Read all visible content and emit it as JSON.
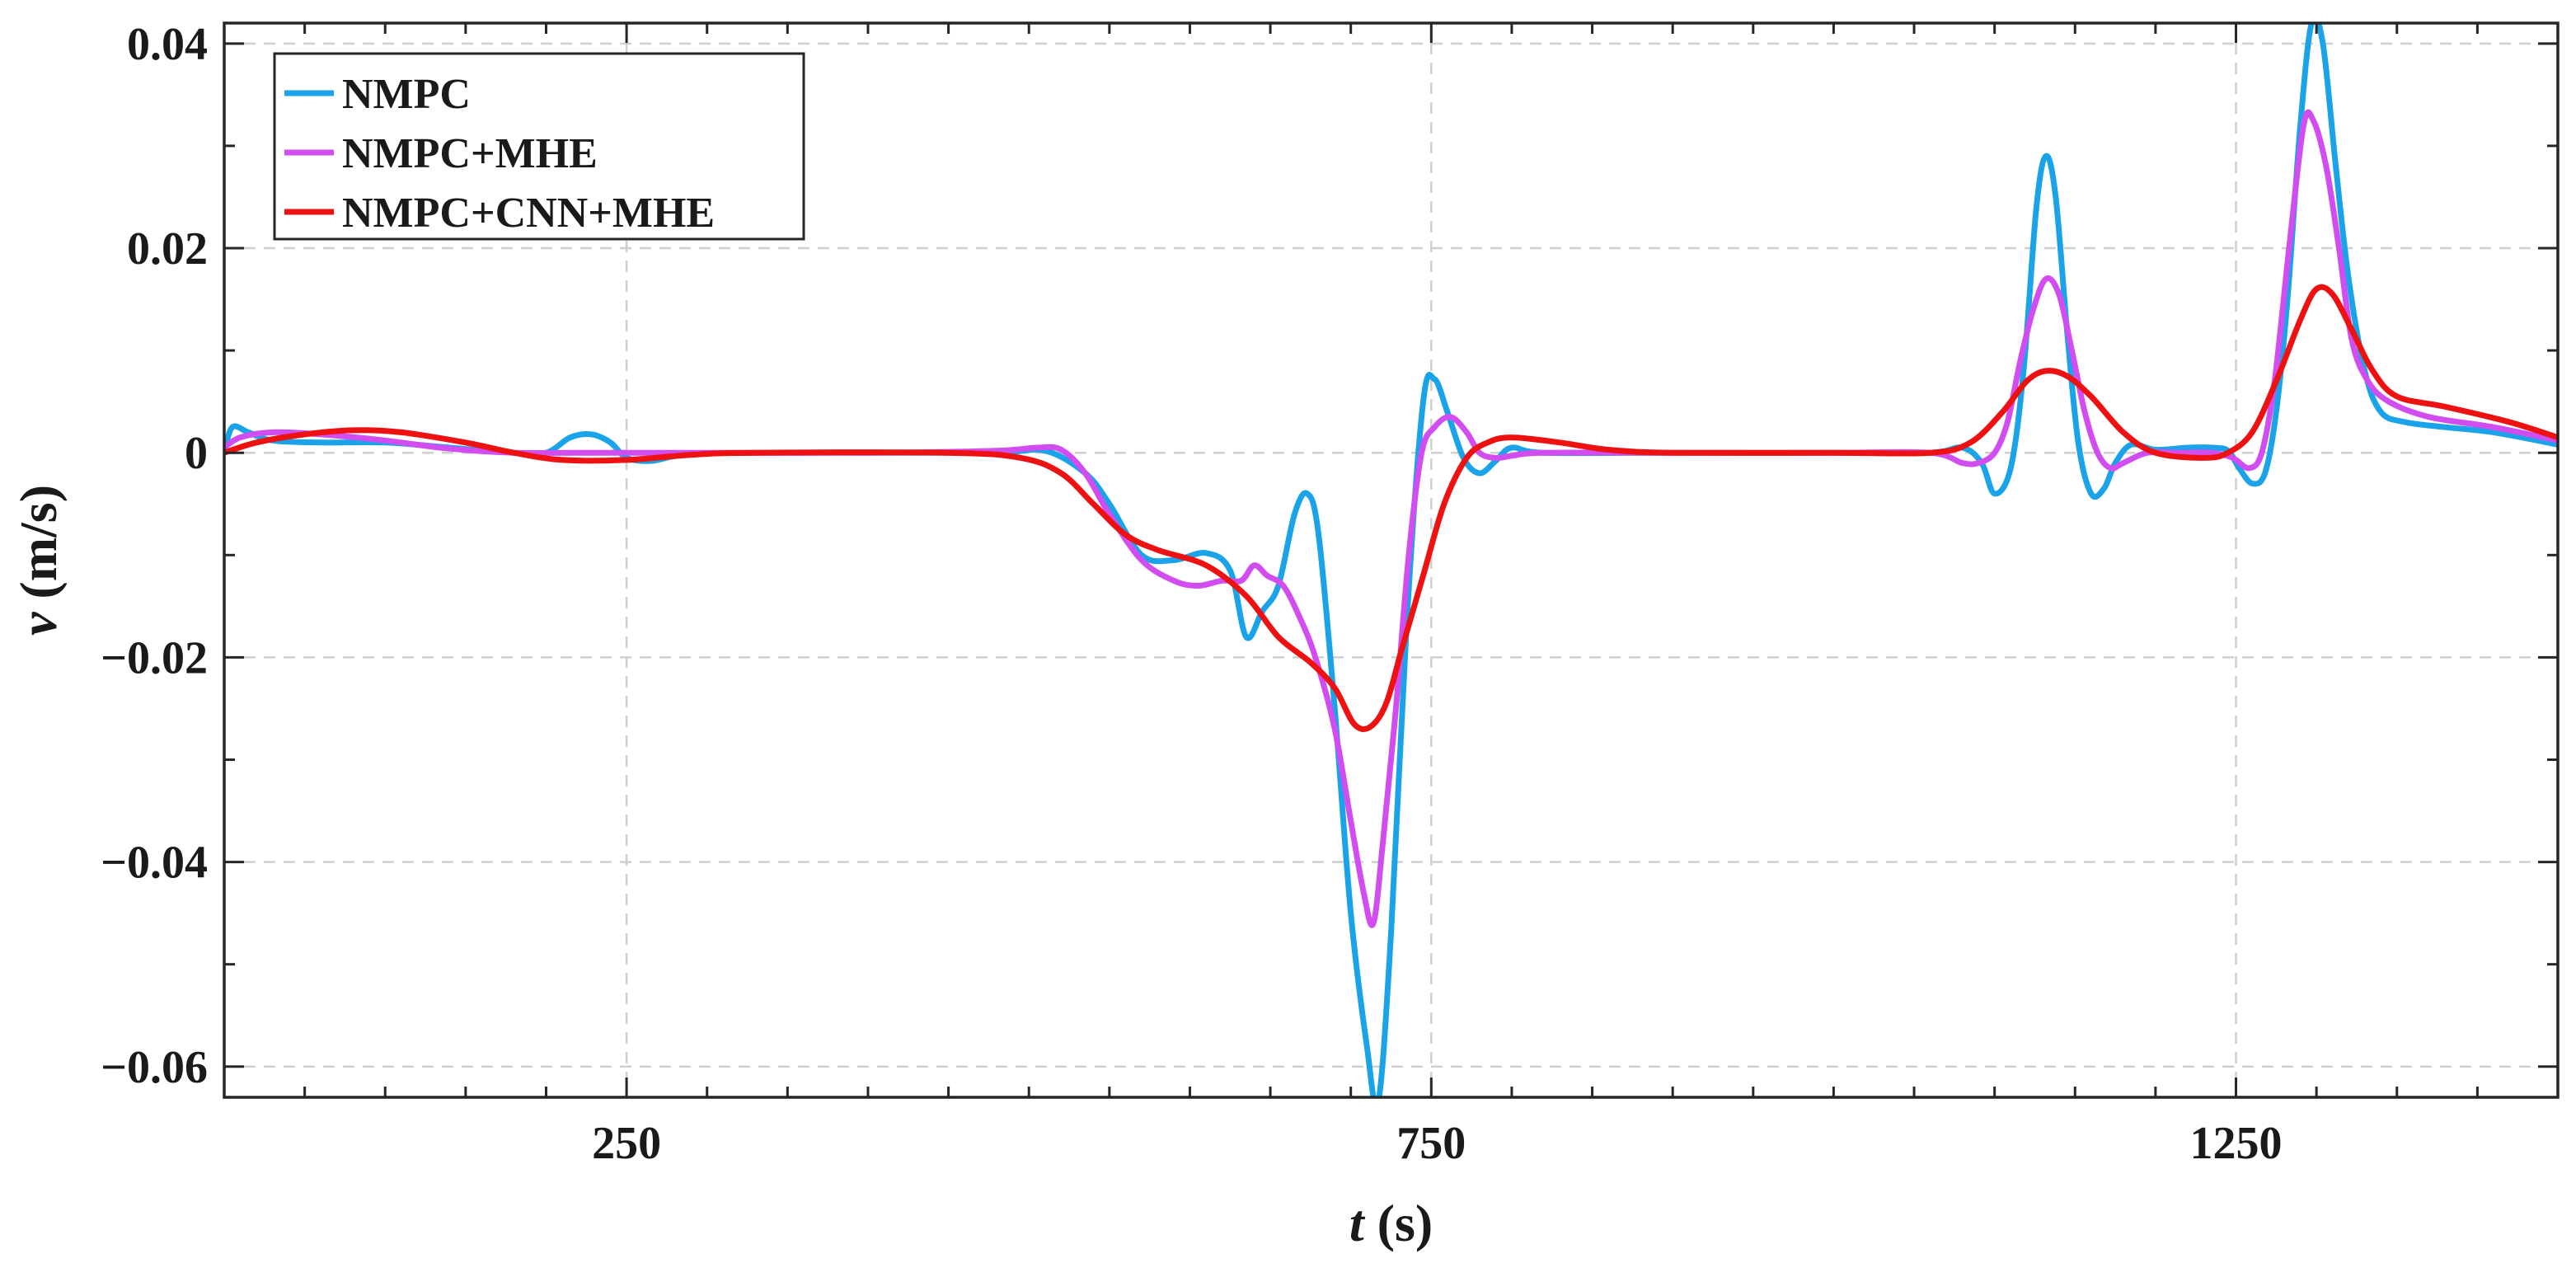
{
  "chart_data": {
    "type": "line",
    "xlabel_var": "t",
    "xlabel_unit": " (s)",
    "ylabel_var": "v",
    "ylabel_unit": " (m/s)",
    "xlim": [
      0,
      1450
    ],
    "ylim": [
      -0.063,
      0.042
    ],
    "xticks": [
      250,
      750,
      1250
    ],
    "xtick_labels": [
      "250",
      "750",
      "1250"
    ],
    "yticks": [
      0.04,
      0.02,
      0,
      -0.02,
      -0.04,
      -0.06
    ],
    "ytick_labels": [
      "0.04",
      "0.02",
      "0",
      "−0.02",
      "−0.04",
      "−0.06"
    ],
    "grid": true,
    "legend_position": "top-left",
    "series": [
      {
        "name": "NMPC",
        "color": "#1aa3e8",
        "points": [
          [
            0,
            0
          ],
          [
            5,
            0.0025
          ],
          [
            15,
            0.002
          ],
          [
            30,
            0.0012
          ],
          [
            60,
            0.001
          ],
          [
            100,
            0.001
          ],
          [
            140,
            0.0005
          ],
          [
            180,
            0
          ],
          [
            200,
            0
          ],
          [
            215,
            0.0015
          ],
          [
            228,
            0.0018
          ],
          [
            240,
            0.001
          ],
          [
            250,
            -0.0005
          ],
          [
            265,
            -0.0008
          ],
          [
            285,
            -0.0002
          ],
          [
            320,
            0
          ],
          [
            400,
            0
          ],
          [
            480,
            0
          ],
          [
            510,
            0.0002
          ],
          [
            535,
            -0.002
          ],
          [
            550,
            -0.005
          ],
          [
            570,
            -0.01
          ],
          [
            590,
            -0.0105
          ],
          [
            610,
            -0.0098
          ],
          [
            625,
            -0.0115
          ],
          [
            635,
            -0.018
          ],
          [
            645,
            -0.0155
          ],
          [
            655,
            -0.013
          ],
          [
            665,
            -0.006
          ],
          [
            673,
            -0.004
          ],
          [
            680,
            -0.008
          ],
          [
            690,
            -0.025
          ],
          [
            700,
            -0.045
          ],
          [
            710,
            -0.058
          ],
          [
            717,
            -0.0635
          ],
          [
            725,
            -0.047
          ],
          [
            735,
            -0.016
          ],
          [
            745,
            0.005
          ],
          [
            752,
            0.0072
          ],
          [
            760,
            0.004
          ],
          [
            770,
            -0.0005
          ],
          [
            780,
            -0.002
          ],
          [
            790,
            -0.0008
          ],
          [
            800,
            0.0005
          ],
          [
            820,
            0
          ],
          [
            900,
            0
          ],
          [
            1000,
            0
          ],
          [
            1060,
            0
          ],
          [
            1080,
            0.0005
          ],
          [
            1092,
            -0.001
          ],
          [
            1100,
            -0.004
          ],
          [
            1110,
            -0.0015
          ],
          [
            1118,
            0.008
          ],
          [
            1126,
            0.024
          ],
          [
            1132,
            0.029
          ],
          [
            1138,
            0.025
          ],
          [
            1145,
            0.012
          ],
          [
            1152,
            0.001
          ],
          [
            1160,
            -0.004
          ],
          [
            1168,
            -0.0035
          ],
          [
            1175,
            -0.001
          ],
          [
            1185,
            0.0008
          ],
          [
            1200,
            0.0003
          ],
          [
            1220,
            0.0005
          ],
          [
            1235,
            0.0005
          ],
          [
            1245,
            0.0002
          ],
          [
            1252,
            -0.0015
          ],
          [
            1260,
            -0.003
          ],
          [
            1268,
            -0.002
          ],
          [
            1275,
            0.004
          ],
          [
            1282,
            0.015
          ],
          [
            1290,
            0.032
          ],
          [
            1297,
            0.042
          ],
          [
            1304,
            0.04
          ],
          [
            1312,
            0.028
          ],
          [
            1320,
            0.017
          ],
          [
            1330,
            0.008
          ],
          [
            1340,
            0.004
          ],
          [
            1355,
            0.003
          ],
          [
            1380,
            0.0025
          ],
          [
            1410,
            0.002
          ],
          [
            1450,
            0.0008
          ]
        ]
      },
      {
        "name": "NMPC+MHE",
        "color": "#d24df0",
        "points": [
          [
            0,
            0.0005
          ],
          [
            10,
            0.0015
          ],
          [
            30,
            0.002
          ],
          [
            60,
            0.0018
          ],
          [
            100,
            0.0012
          ],
          [
            140,
            0.0004
          ],
          [
            180,
            0
          ],
          [
            220,
            0
          ],
          [
            300,
            0
          ],
          [
            400,
            0
          ],
          [
            480,
            0.0002
          ],
          [
            505,
            0.0005
          ],
          [
            520,
            0.0003
          ],
          [
            535,
            -0.002
          ],
          [
            550,
            -0.006
          ],
          [
            570,
            -0.0105
          ],
          [
            590,
            -0.0125
          ],
          [
            605,
            -0.013
          ],
          [
            620,
            -0.0125
          ],
          [
            632,
            -0.0125
          ],
          [
            640,
            -0.011
          ],
          [
            648,
            -0.012
          ],
          [
            658,
            -0.013
          ],
          [
            668,
            -0.016
          ],
          [
            678,
            -0.02
          ],
          [
            690,
            -0.027
          ],
          [
            700,
            -0.036
          ],
          [
            708,
            -0.043
          ],
          [
            714,
            -0.046
          ],
          [
            720,
            -0.038
          ],
          [
            728,
            -0.025
          ],
          [
            736,
            -0.01
          ],
          [
            744,
            0
          ],
          [
            752,
            0.0025
          ],
          [
            762,
            0.0035
          ],
          [
            772,
            0.002
          ],
          [
            780,
            0
          ],
          [
            790,
            -0.0005
          ],
          [
            800,
            -0.0003
          ],
          [
            820,
            0
          ],
          [
            900,
            0
          ],
          [
            1000,
            0
          ],
          [
            1060,
            0
          ],
          [
            1080,
            -0.001
          ],
          [
            1090,
            -0.001
          ],
          [
            1100,
            0
          ],
          [
            1108,
            0.003
          ],
          [
            1116,
            0.009
          ],
          [
            1124,
            0.014
          ],
          [
            1132,
            0.017
          ],
          [
            1140,
            0.0155
          ],
          [
            1148,
            0.01
          ],
          [
            1156,
            0.004
          ],
          [
            1164,
            0
          ],
          [
            1172,
            -0.0015
          ],
          [
            1180,
            -0.001
          ],
          [
            1195,
            0
          ],
          [
            1215,
            0
          ],
          [
            1235,
            0
          ],
          [
            1248,
            -0.0005
          ],
          [
            1258,
            -0.0015
          ],
          [
            1266,
            0
          ],
          [
            1274,
            0.007
          ],
          [
            1283,
            0.02
          ],
          [
            1292,
            0.032
          ],
          [
            1298,
            0.0325
          ],
          [
            1306,
            0.028
          ],
          [
            1314,
            0.02
          ],
          [
            1322,
            0.011
          ],
          [
            1332,
            0.007
          ],
          [
            1345,
            0.005
          ],
          [
            1370,
            0.0035
          ],
          [
            1410,
            0.0025
          ],
          [
            1450,
            0.0012
          ]
        ]
      },
      {
        "name": "NMPC+CNN+MHE",
        "color": "#ee1111",
        "points": [
          [
            0,
            0
          ],
          [
            20,
            0.001
          ],
          [
            50,
            0.0018
          ],
          [
            80,
            0.0022
          ],
          [
            110,
            0.002
          ],
          [
            150,
            0.001
          ],
          [
            180,
            0
          ],
          [
            210,
            -0.0007
          ],
          [
            250,
            -0.0007
          ],
          [
            290,
            -0.0002
          ],
          [
            330,
            0
          ],
          [
            450,
            0
          ],
          [
            495,
            -0.0005
          ],
          [
            520,
            -0.002
          ],
          [
            540,
            -0.005
          ],
          [
            560,
            -0.008
          ],
          [
            580,
            -0.0095
          ],
          [
            610,
            -0.011
          ],
          [
            635,
            -0.014
          ],
          [
            655,
            -0.018
          ],
          [
            675,
            -0.0205
          ],
          [
            690,
            -0.023
          ],
          [
            702,
            -0.0265
          ],
          [
            712,
            -0.0268
          ],
          [
            722,
            -0.0245
          ],
          [
            732,
            -0.019
          ],
          [
            745,
            -0.012
          ],
          [
            758,
            -0.005
          ],
          [
            772,
            -0.0005
          ],
          [
            785,
            0.001
          ],
          [
            800,
            0.0015
          ],
          [
            830,
            0.001
          ],
          [
            860,
            0.0003
          ],
          [
            900,
            0
          ],
          [
            1000,
            0
          ],
          [
            1060,
            0
          ],
          [
            1085,
            0.001
          ],
          [
            1105,
            0.004
          ],
          [
            1120,
            0.007
          ],
          [
            1132,
            0.008
          ],
          [
            1145,
            0.0075
          ],
          [
            1160,
            0.0055
          ],
          [
            1180,
            0.002
          ],
          [
            1200,
            0
          ],
          [
            1230,
            -0.0005
          ],
          [
            1245,
            0
          ],
          [
            1260,
            0.002
          ],
          [
            1275,
            0.007
          ],
          [
            1290,
            0.013
          ],
          [
            1300,
            0.016
          ],
          [
            1310,
            0.0155
          ],
          [
            1322,
            0.012
          ],
          [
            1335,
            0.008
          ],
          [
            1350,
            0.0055
          ],
          [
            1380,
            0.0045
          ],
          [
            1420,
            0.003
          ],
          [
            1450,
            0.0015
          ]
        ]
      }
    ]
  }
}
